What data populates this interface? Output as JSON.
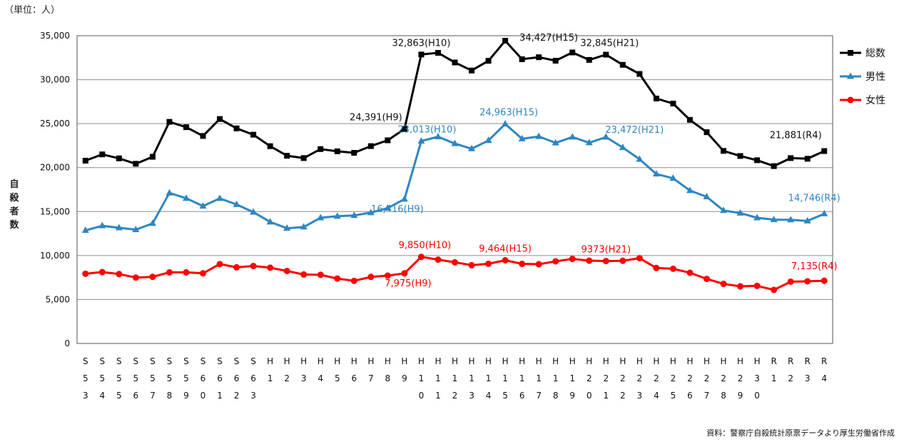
{
  "unit_label": "（単位：人）",
  "source_note": "資料：警察庁自殺統計原票データより厚生労働省作成",
  "chart_data": {
    "type": "line",
    "ylabel": "自殺者数",
    "ylim": [
      0,
      35000
    ],
    "yticks": [
      "0",
      "5,000",
      "10,000",
      "15,000",
      "20,000",
      "25,000",
      "30,000",
      "35,000"
    ],
    "grid": true,
    "legend_position": "right",
    "categories": [
      "S53",
      "S54",
      "S55",
      "S56",
      "S57",
      "S58",
      "S59",
      "S60",
      "S61",
      "S62",
      "S63",
      "H1",
      "H2",
      "H3",
      "H4",
      "H5",
      "H6",
      "H7",
      "H8",
      "H9",
      "H10",
      "H11",
      "H12",
      "H13",
      "H14",
      "H15",
      "H16",
      "H17",
      "H18",
      "H19",
      "H20",
      "H21",
      "H22",
      "H23",
      "H24",
      "H25",
      "H26",
      "H27",
      "H28",
      "H29",
      "H30",
      "R1",
      "R2",
      "R3",
      "R4"
    ],
    "series": [
      {
        "name": "総数",
        "color": "#000000",
        "marker": "square",
        "values": [
          20788,
          21503,
          21048,
          20434,
          21228,
          25202,
          24596,
          23599,
          25524,
          24460,
          23742,
          22436,
          21346,
          21084,
          22104,
          21851,
          21679,
          22445,
          23104,
          24391,
          32863,
          33048,
          31957,
          31042,
          32143,
          34427,
          32325,
          32552,
          32155,
          33093,
          32249,
          32845,
          31690,
          30651,
          27858,
          27283,
          25427,
          24025,
          21897,
          21321,
          20840,
          20169,
          21081,
          21007,
          21881
        ],
        "annotations": [
          {
            "index": 19,
            "text": "24,391(H9)"
          },
          {
            "index": 20,
            "text": "32,863(H10)"
          },
          {
            "index": 25,
            "text": "34,427(H15)"
          },
          {
            "index": 31,
            "text": "32,845(H21)"
          },
          {
            "index": 44,
            "text": "21,881(R4)"
          }
        ]
      },
      {
        "name": "男性",
        "color": "#2e86c1",
        "marker": "triangle",
        "values": [
          12859,
          13386,
          13155,
          12942,
          13654,
          17116,
          16508,
          15624,
          16497,
          15802,
          14934,
          13818,
          13102,
          13242,
          14296,
          14468,
          14560,
          14874,
          15393,
          16416,
          23013,
          23512,
          22727,
          22144,
          23080,
          24963,
          23272,
          23540,
          22813,
          23478,
          22831,
          23472,
          22283,
          20955,
          19273,
          18787,
          17386,
          16681,
          15121,
          14826,
          14290,
          14078,
          14055,
          13939,
          14746
        ],
        "annotations": [
          {
            "index": 19,
            "text": "16,416(H9)"
          },
          {
            "index": 20,
            "text": "23,013(H10)"
          },
          {
            "index": 25,
            "text": "24,963(H15)"
          },
          {
            "index": 31,
            "text": "23,472(H21)"
          },
          {
            "index": 44,
            "text": "14,746(R4)"
          }
        ]
      },
      {
        "name": "女性",
        "color": "#ff0000",
        "marker": "circle",
        "values": [
          7929,
          8117,
          7893,
          7492,
          7574,
          8086,
          8088,
          7975,
          9027,
          8658,
          8808,
          8618,
          8244,
          7842,
          7808,
          7383,
          7119,
          7571,
          7711,
          7975,
          9850,
          9536,
          9230,
          8898,
          9063,
          9464,
          9053,
          9012,
          9342,
          9615,
          9418,
          9373,
          9407,
          9696,
          8585,
          8496,
          8041,
          7344,
          6776,
          6495,
          6550,
          6091,
          7026,
          7068,
          7135
        ],
        "annotations": [
          {
            "index": 19,
            "text": "7,975(H9)"
          },
          {
            "index": 20,
            "text": "9,850(H10)"
          },
          {
            "index": 25,
            "text": "9,464(H15)"
          },
          {
            "index": 31,
            "text": "9373(H21)"
          },
          {
            "index": 44,
            "text": "7,135(R4)"
          }
        ]
      }
    ]
  }
}
